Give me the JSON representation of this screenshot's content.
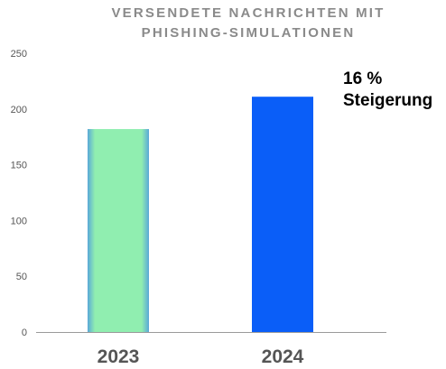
{
  "chart_data": {
    "type": "bar",
    "title": "VERSENDETE NACHRICHTEN MIT PHISHING-SIMULATIONEN",
    "title_lines": [
      "VERSENDETE NACHRICHTEN MIT",
      "PHISHING-SIMULATIONEN"
    ],
    "categories": [
      "2023",
      "2024"
    ],
    "values": [
      182,
      211
    ],
    "bar_colors": [
      "#90eeb0",
      "#0a5ef8"
    ],
    "bar_edge_colors": [
      "#5aa8d8",
      "#0a5ef8"
    ],
    "yticks": [
      "0",
      "50",
      "100",
      "150",
      "200",
      "250"
    ],
    "ylim": [
      0,
      250
    ],
    "grid": false,
    "annotation": {
      "line1": "16 %",
      "line2": "Steigerung"
    },
    "xlabel": "",
    "ylabel": ""
  }
}
